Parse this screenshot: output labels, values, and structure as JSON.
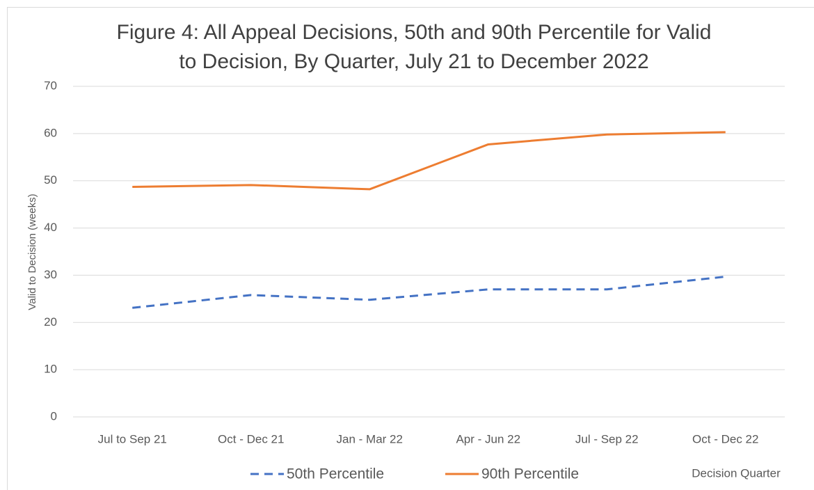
{
  "chart_data": {
    "type": "line",
    "title": [
      "Figure 4: All Appeal Decisions,  50th and 90th Percentile for Valid",
      "to Decision, By Quarter, July 21 to December 2022"
    ],
    "x_label": "Decision Quarter",
    "y_label": "Valid to Decision (weeks)",
    "categories": [
      "Jul to Sep 21",
      "Oct - Dec 21",
      "Jan - Mar 22",
      "Apr - Jun 22",
      "Jul - Sep 22",
      "Oct - Dec 22"
    ],
    "series": [
      {
        "name": "50th Percentile",
        "color": "#4472c4",
        "dashed": true,
        "values": [
          23.1,
          25.8,
          24.8,
          27.0,
          27.0,
          29.7
        ]
      },
      {
        "name": "90th Percentile",
        "color": "#ed7d31",
        "dashed": false,
        "values": [
          48.7,
          49.1,
          48.2,
          57.7,
          59.8,
          60.3
        ]
      }
    ],
    "ylim": [
      0,
      70
    ],
    "yticks": [
      0,
      10,
      20,
      30,
      40,
      50,
      60,
      70
    ],
    "grid": true,
    "legend": "bottom"
  }
}
